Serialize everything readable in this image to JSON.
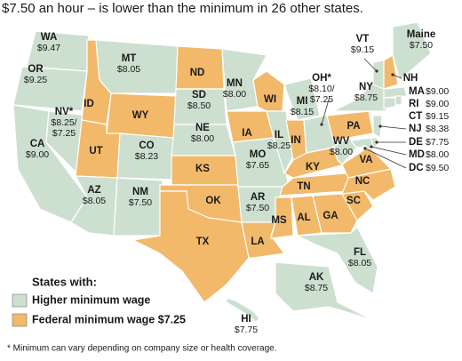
{
  "header": {
    "text": "$7.50 an hour – is lower than the minimum in 26 other states."
  },
  "states": [
    {
      "abbr": "WA",
      "wage": "$9.47",
      "legend_item": 0
    },
    {
      "abbr": "OR",
      "wage": "$9.25",
      "legend_item": 0
    },
    {
      "abbr": "CA",
      "wage": "$9.00",
      "legend_item": 0
    },
    {
      "abbr": "NV*",
      "wage": [
        "$8.25/",
        "$7.25"
      ],
      "legend_item": 0
    },
    {
      "abbr": "ID",
      "legend_item": 1
    },
    {
      "abbr": "MT",
      "wage": "$8.05",
      "legend_item": 0
    },
    {
      "abbr": "WY",
      "legend_item": 1
    },
    {
      "abbr": "UT",
      "legend_item": 1
    },
    {
      "abbr": "CO",
      "wage": "$8.23",
      "legend_item": 0
    },
    {
      "abbr": "AZ",
      "wage": "$8.05",
      "legend_item": 0
    },
    {
      "abbr": "NM",
      "wage": "$7.50",
      "legend_item": 0
    },
    {
      "abbr": "ND",
      "legend_item": 1
    },
    {
      "abbr": "SD",
      "wage": "$8.50",
      "legend_item": 0
    },
    {
      "abbr": "NE",
      "wage": "$8.00",
      "legend_item": 0
    },
    {
      "abbr": "KS",
      "legend_item": 1
    },
    {
      "abbr": "OK",
      "legend_item": 1
    },
    {
      "abbr": "TX",
      "legend_item": 1
    },
    {
      "abbr": "MN",
      "wage": "$8.00",
      "legend_item": 0
    },
    {
      "abbr": "IA",
      "legend_item": 1
    },
    {
      "abbr": "MO",
      "wage": "$7.65",
      "legend_item": 0
    },
    {
      "abbr": "AR",
      "wage": "$7.50",
      "legend_item": 0
    },
    {
      "abbr": "LA",
      "legend_item": 1
    },
    {
      "abbr": "WI",
      "legend_item": 1
    },
    {
      "abbr": "IL",
      "wage": "$8.25",
      "legend_item": 0
    },
    {
      "abbr": "MI",
      "wage": "$8.15",
      "legend_item": 0
    },
    {
      "abbr": "IN",
      "legend_item": 1
    },
    {
      "abbr": "OH*",
      "wage": [
        "$8.10/",
        "$7.25"
      ],
      "legend_item": 0
    },
    {
      "abbr": "KY",
      "legend_item": 1
    },
    {
      "abbr": "TN",
      "legend_item": 1
    },
    {
      "abbr": "MS",
      "legend_item": 1
    },
    {
      "abbr": "AL",
      "legend_item": 1
    },
    {
      "abbr": "GA",
      "legend_item": 1
    },
    {
      "abbr": "FL",
      "wage": "$8.05",
      "legend_item": 0
    },
    {
      "abbr": "SC",
      "legend_item": 1
    },
    {
      "abbr": "NC",
      "legend_item": 1
    },
    {
      "abbr": "VA",
      "legend_item": 1
    },
    {
      "abbr": "WV",
      "wage": "$8.00",
      "legend_item": 0
    },
    {
      "abbr": "PA",
      "legend_item": 1
    },
    {
      "abbr": "NY",
      "wage": "$8.75",
      "legend_item": 0
    },
    {
      "abbr": "VT",
      "wage": "$9.15",
      "legend_item": 0
    },
    {
      "abbr": "NH",
      "legend_item": 1
    },
    {
      "abbr": "Maine",
      "wage": "$7.50",
      "legend_item": 0
    },
    {
      "abbr": "MA",
      "wage": "$9.00",
      "legend_item": 0
    },
    {
      "abbr": "RI",
      "wage": "$9.00",
      "legend_item": 0
    },
    {
      "abbr": "CT",
      "wage": "$9.15",
      "legend_item": 0
    },
    {
      "abbr": "NJ",
      "wage": "$8.38",
      "legend_item": 0
    },
    {
      "abbr": "DE",
      "wage": "$7.75",
      "legend_item": 0
    },
    {
      "abbr": "MD",
      "wage": "$8.00",
      "legend_item": 0
    },
    {
      "abbr": "DC",
      "wage": "$9.50",
      "legend_item": 0
    },
    {
      "abbr": "AK",
      "wage": "$8.75",
      "legend_item": 0
    },
    {
      "abbr": "HI",
      "wage": "$7.75",
      "legend_item": 0
    }
  ],
  "legend": {
    "title": "States with:",
    "items": [
      {
        "label": "Higher minimum wage",
        "color": "#cddfcf"
      },
      {
        "label": "Federal minimum wage $7.25",
        "color": "#f2b96a"
      }
    ]
  },
  "footnote": "* Minimum can vary depending on company size or health coverage."
}
